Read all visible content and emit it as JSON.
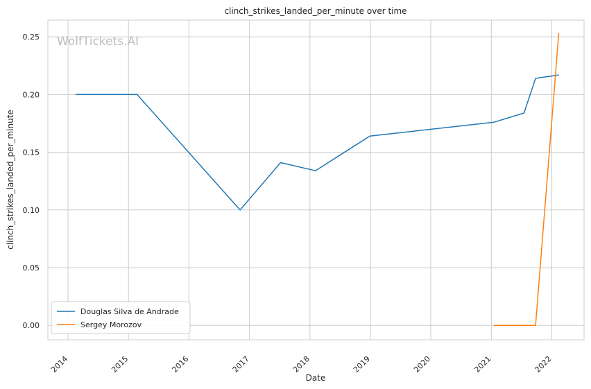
{
  "chart_data": {
    "type": "line",
    "title": "clinch_strikes_landed_per_minute over time",
    "xlabel": "Date",
    "ylabel": "clinch_strikes_landed_per_minute",
    "watermark": "WolfTickets.AI",
    "x_ticks": [
      "2014",
      "2015",
      "2016",
      "2017",
      "2018",
      "2019",
      "2020",
      "2021",
      "2022"
    ],
    "y_ticks": [
      "0.00",
      "0.05",
      "0.10",
      "0.15",
      "0.20",
      "0.25"
    ],
    "xlim": [
      "2013-09-01",
      "2022-07-15"
    ],
    "ylim": [
      -0.0125,
      0.2645
    ],
    "grid": true,
    "legend_position": "lower-left",
    "series": [
      {
        "name": "Douglas Silva de Andrade",
        "color": "#1f77b4",
        "x": [
          "2014-02-15",
          "2015-02-22",
          "2016-11-05",
          "2017-07-08",
          "2018-02-03",
          "2018-12-29",
          "2021-01-16",
          "2021-07-17",
          "2021-09-25",
          "2022-02-12"
        ],
        "y": [
          0.2,
          0.2,
          0.1,
          0.141,
          0.134,
          0.164,
          0.176,
          0.184,
          0.214,
          0.217
        ]
      },
      {
        "name": "Sergey Morozov",
        "color": "#ff7f0e",
        "x": [
          "2021-01-16",
          "2021-09-25",
          "2022-02-12"
        ],
        "y": [
          0.0,
          0.0,
          0.253
        ]
      }
    ]
  }
}
